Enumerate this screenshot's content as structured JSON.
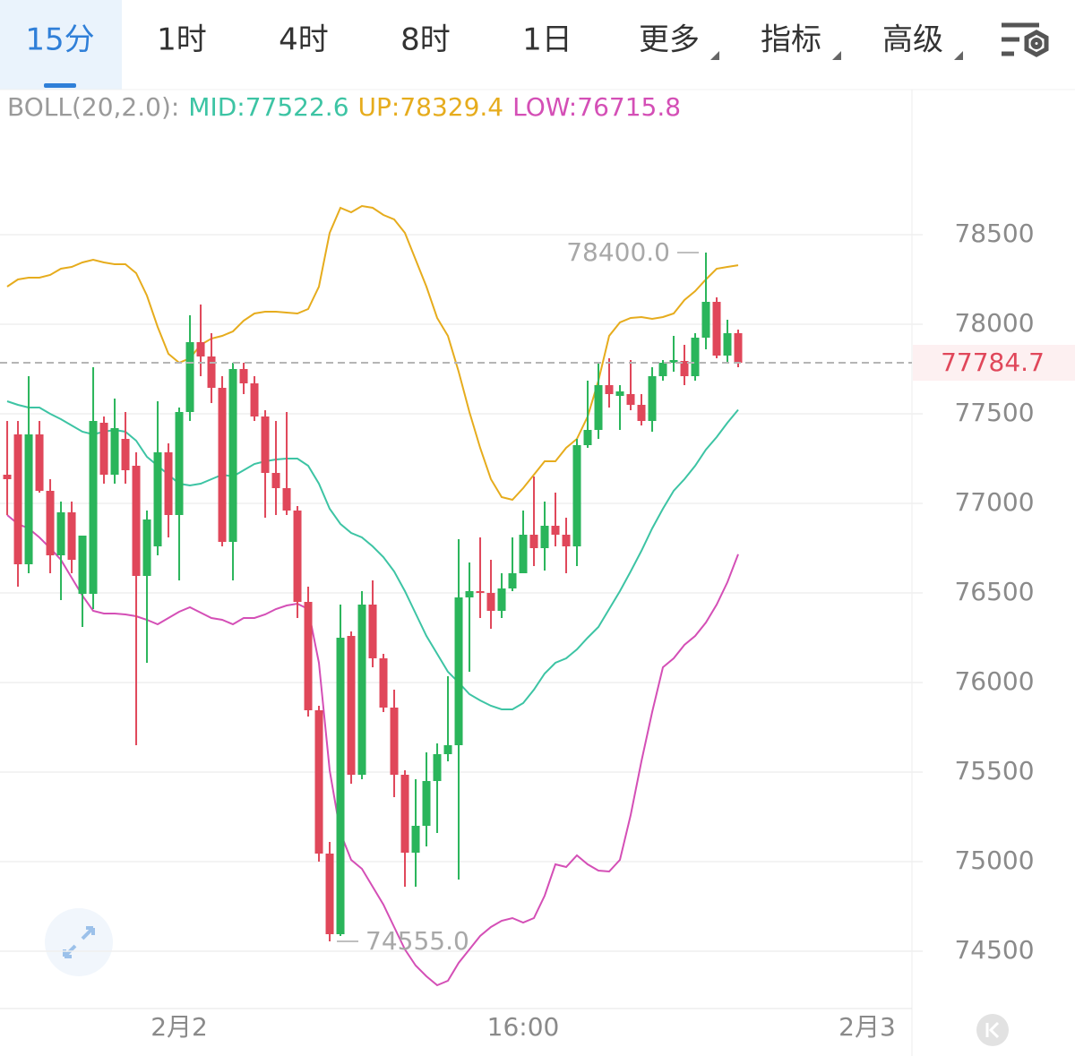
{
  "tabs": [
    "15分",
    "1时",
    "4时",
    "8时",
    "1日"
  ],
  "menu_tabs": [
    "更多",
    "指标",
    "高级"
  ],
  "chart_data": {
    "type": "candlestick",
    "indicator": "BOLL(20,2.0):",
    "up_color": "#2ab55b",
    "down_color": "#e0475a",
    "open": [
      77160,
      77385,
      76660,
      77385,
      77070,
      76710,
      76950,
      76495,
      76495,
      77450,
      77160,
      77360,
      77210,
      76595,
      76760,
      77285,
      76935,
      77510,
      77900,
      77820,
      77645,
      76785,
      77750,
      77670,
      77485,
      77170,
      77085,
      76960,
      76450,
      75845,
      75045,
      74595,
      76260,
      75485,
      76435,
      76135,
      75860,
      75485,
      75050,
      75200,
      75450,
      75600,
      75650,
      76475,
      76510,
      76500,
      76400,
      76525,
      76610,
      76825,
      76750,
      76875,
      76825,
      76760,
      77325,
      77410,
      77660,
      77600,
      77610,
      77550,
      77460,
      77710,
      77785,
      77795,
      77710,
      77925,
      78125,
      77825,
      77950
    ],
    "high": [
      77460,
      77460,
      77710,
      77460,
      77135,
      77010,
      77010,
      76820,
      77760,
      77485,
      77585,
      77510,
      77285,
      76960,
      77570,
      77335,
      77535,
      78050,
      78110,
      77950,
      77710,
      77785,
      77785,
      77710,
      77520,
      77460,
      77510,
      76985,
      76535,
      75870,
      75110,
      76435,
      76285,
      76510,
      76570,
      76160,
      75960,
      75510,
      75460,
      75610,
      75660,
      76035,
      76800,
      76670,
      76810,
      76685,
      76610,
      76810,
      76960,
      77150,
      77010,
      77060,
      76920,
      77360,
      77685,
      77785,
      77810,
      77660,
      77800,
      77610,
      77760,
      77800,
      77935,
      77885,
      77950,
      78400,
      78150,
      78025,
      77970
    ],
    "low": [
      76935,
      76535,
      76610,
      77060,
      76610,
      76460,
      76610,
      76310,
      76410,
      77110,
      77110,
      77110,
      75650,
      76110,
      76710,
      76810,
      76570,
      77460,
      77710,
      77560,
      76760,
      76570,
      77610,
      77460,
      76920,
      76935,
      76935,
      76360,
      75810,
      75000,
      74555,
      74585,
      75435,
      75460,
      76085,
      75835,
      75360,
      74860,
      74860,
      75085,
      75160,
      75560,
      74900,
      76060,
      76360,
      76300,
      76360,
      76510,
      76610,
      76650,
      76625,
      76760,
      76610,
      76650,
      77310,
      77360,
      77535,
      77410,
      77520,
      77435,
      77400,
      77685,
      77735,
      77660,
      77685,
      77860,
      77810,
      77785,
      77760
    ],
    "close": [
      77135,
      76660,
      77385,
      77070,
      76710,
      76950,
      76685,
      76820,
      77460,
      77160,
      77420,
      77185,
      76595,
      76910,
      77285,
      76935,
      77510,
      77900,
      77820,
      77645,
      76785,
      77750,
      77670,
      77485,
      77170,
      77085,
      76960,
      76450,
      75845,
      75045,
      74595,
      76250,
      75485,
      76435,
      76135,
      75860,
      75485,
      75050,
      75200,
      75450,
      75600,
      75650,
      76475,
      76510,
      76500,
      76400,
      76525,
      76610,
      76825,
      76750,
      76875,
      76825,
      76760,
      77325,
      77410,
      77660,
      77610,
      77625,
      77550,
      77460,
      77710,
      77785,
      77800,
      77710,
      77925,
      78125,
      77825,
      77950,
      77784.7
    ],
    "bands": [
      {
        "name": "MID:",
        "color": "#3dc4a4",
        "values": [
          77570,
          77550,
          77535,
          77535,
          77500,
          77470,
          77435,
          77400,
          77385,
          77400,
          77410,
          77400,
          77350,
          77260,
          77210,
          77160,
          77110,
          77100,
          77110,
          77135,
          77160,
          77150,
          77185,
          77220,
          77235,
          77245,
          77250,
          77250,
          77210,
          77110,
          76970,
          76885,
          76835,
          76810,
          76760,
          76700,
          76620,
          76510,
          76385,
          76260,
          76160,
          76060,
          76000,
          75935,
          75900,
          75870,
          75850,
          75850,
          75885,
          75960,
          76050,
          76110,
          76135,
          76185,
          76250,
          76310,
          76410,
          76510,
          76620,
          76735,
          76860,
          76970,
          77070,
          77135,
          77210,
          77300,
          77370,
          77450,
          77522.6
        ]
      },
      {
        "name": "UP:",
        "color": "#e6ac1d",
        "values": [
          78210,
          78250,
          78260,
          78260,
          78275,
          78310,
          78320,
          78345,
          78360,
          78345,
          78335,
          78335,
          78285,
          78160,
          77985,
          77835,
          77785,
          77810,
          77885,
          77920,
          77935,
          77960,
          78020,
          78060,
          78070,
          78070,
          78065,
          78060,
          78085,
          78210,
          78510,
          78650,
          78625,
          78660,
          78650,
          78610,
          78585,
          78510,
          78360,
          78210,
          78035,
          77935,
          77735,
          77510,
          77310,
          77135,
          77035,
          77020,
          77085,
          77160,
          77235,
          77235,
          77310,
          77360,
          77485,
          77685,
          77935,
          78010,
          78035,
          78040,
          78030,
          78040,
          78060,
          78135,
          78185,
          78250,
          78310,
          78320,
          78329.4
        ]
      },
      {
        "name": "LOW:",
        "color": "#d44fb6",
        "values": [
          76935,
          76885,
          76860,
          76810,
          76750,
          76685,
          76585,
          76485,
          76400,
          76385,
          76385,
          76380,
          76370,
          76350,
          76325,
          76360,
          76395,
          76420,
          76390,
          76360,
          76350,
          76325,
          76360,
          76360,
          76380,
          76410,
          76430,
          76440,
          76410,
          76110,
          75510,
          75160,
          75010,
          74960,
          74860,
          74760,
          74635,
          74510,
          74420,
          74360,
          74310,
          74335,
          74435,
          74510,
          74585,
          74635,
          74670,
          74685,
          74660,
          74685,
          74810,
          74985,
          74970,
          75035,
          74985,
          74950,
          74945,
          75010,
          75260,
          75560,
          75835,
          76085,
          76135,
          76210,
          76260,
          76335,
          76435,
          76560,
          76715.8
        ]
      }
    ],
    "last_price": 77784.7,
    "annotations": [
      {
        "x": 65,
        "value": 78400,
        "label": "78400.0"
      },
      {
        "x": 30,
        "value": 74555,
        "label": "74555.0"
      }
    ],
    "ylim": [
      74185,
      79310
    ],
    "yticks": [
      74500,
      75000,
      75500,
      76000,
      76500,
      77000,
      77500,
      78000,
      78500
    ],
    "xlim": [
      -0.67,
      84.3
    ],
    "xticks": [
      {
        "value": 16,
        "label": "2月2"
      },
      {
        "value": 48,
        "label": "16:00"
      },
      {
        "value": 80,
        "label": "2月3"
      }
    ],
    "grid": true
  }
}
